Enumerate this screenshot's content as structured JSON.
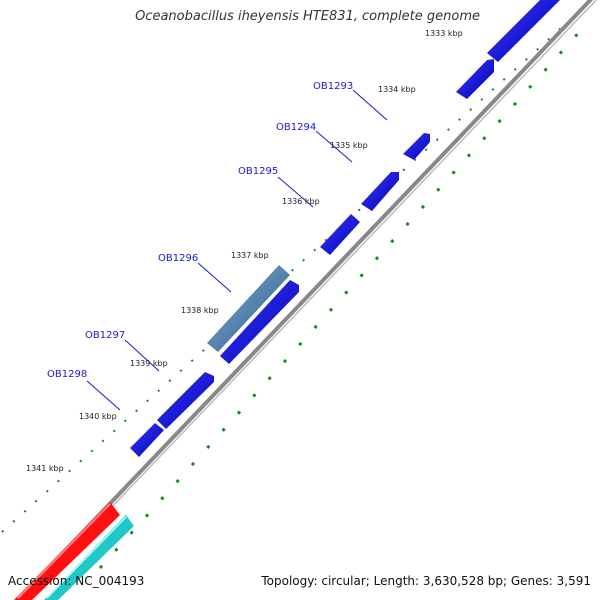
{
  "title": "Oceanobacillus iheyensis HTE831, complete genome",
  "footer": {
    "accession": "Accession: NC_004193",
    "summary": "Topology: circular; Length: 3,630,528 bp; Genes: 3,591"
  },
  "colors": {
    "backbone": "#888888",
    "gene_forward": "#1010e0",
    "gene_highlight": "#4a7fae",
    "feature_red": "#ff1010",
    "feature_cyan": "#20c8c8",
    "gc_skew_dots": "#1a8a1a",
    "label_text": "#1a1acc"
  },
  "kbp_ticks": [
    {
      "text": "1333 kbp"
    },
    {
      "text": "1334 kbp"
    },
    {
      "text": "1335 kbp"
    },
    {
      "text": "1336 kbp"
    },
    {
      "text": "1337 kbp"
    },
    {
      "text": "1338 kbp"
    },
    {
      "text": "1339 kbp"
    },
    {
      "text": "1340 kbp"
    },
    {
      "text": "1341 kbp"
    }
  ],
  "gene_labels": [
    {
      "text": "OB1293"
    },
    {
      "text": "OB1294"
    },
    {
      "text": "OB1295"
    },
    {
      "text": "OB1296"
    },
    {
      "text": "OB1297"
    },
    {
      "text": "OB1298"
    }
  ]
}
